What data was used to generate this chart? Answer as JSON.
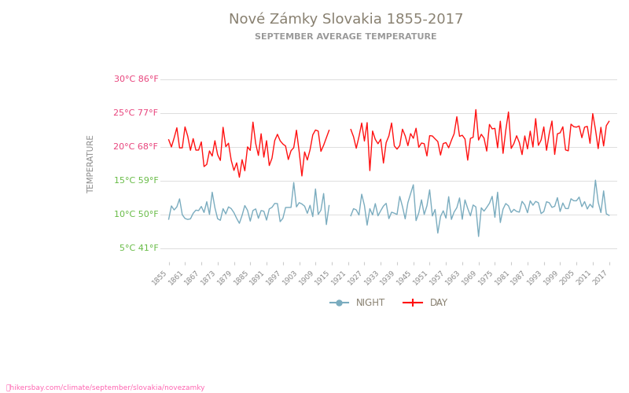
{
  "title": "Nové Zámky Slovakia 1855-2017",
  "subtitle": "SEPTEMBER AVERAGE TEMPERATURE",
  "ylabel": "TEMPERATURE",
  "day_color": "#ff1111",
  "night_color": "#7aacbf",
  "background_color": "#ffffff",
  "grid_color": "#dddddd",
  "yticks_c": [
    5,
    10,
    15,
    20,
    25,
    30
  ],
  "yticks_f": [
    41,
    50,
    59,
    68,
    77,
    86
  ],
  "ylim": [
    3,
    32
  ],
  "tick_color_pink": "#e8407a",
  "tick_color_green": "#66bb44",
  "title_color": "#888070",
  "subtitle_color": "#999999",
  "ylabel_color": "#888888",
  "xlabel_color": "#888888",
  "watermark": "hikersbay.com/climate/september/slovakia/novezamky",
  "legend_night": "NIGHT",
  "legend_day": "DAY"
}
